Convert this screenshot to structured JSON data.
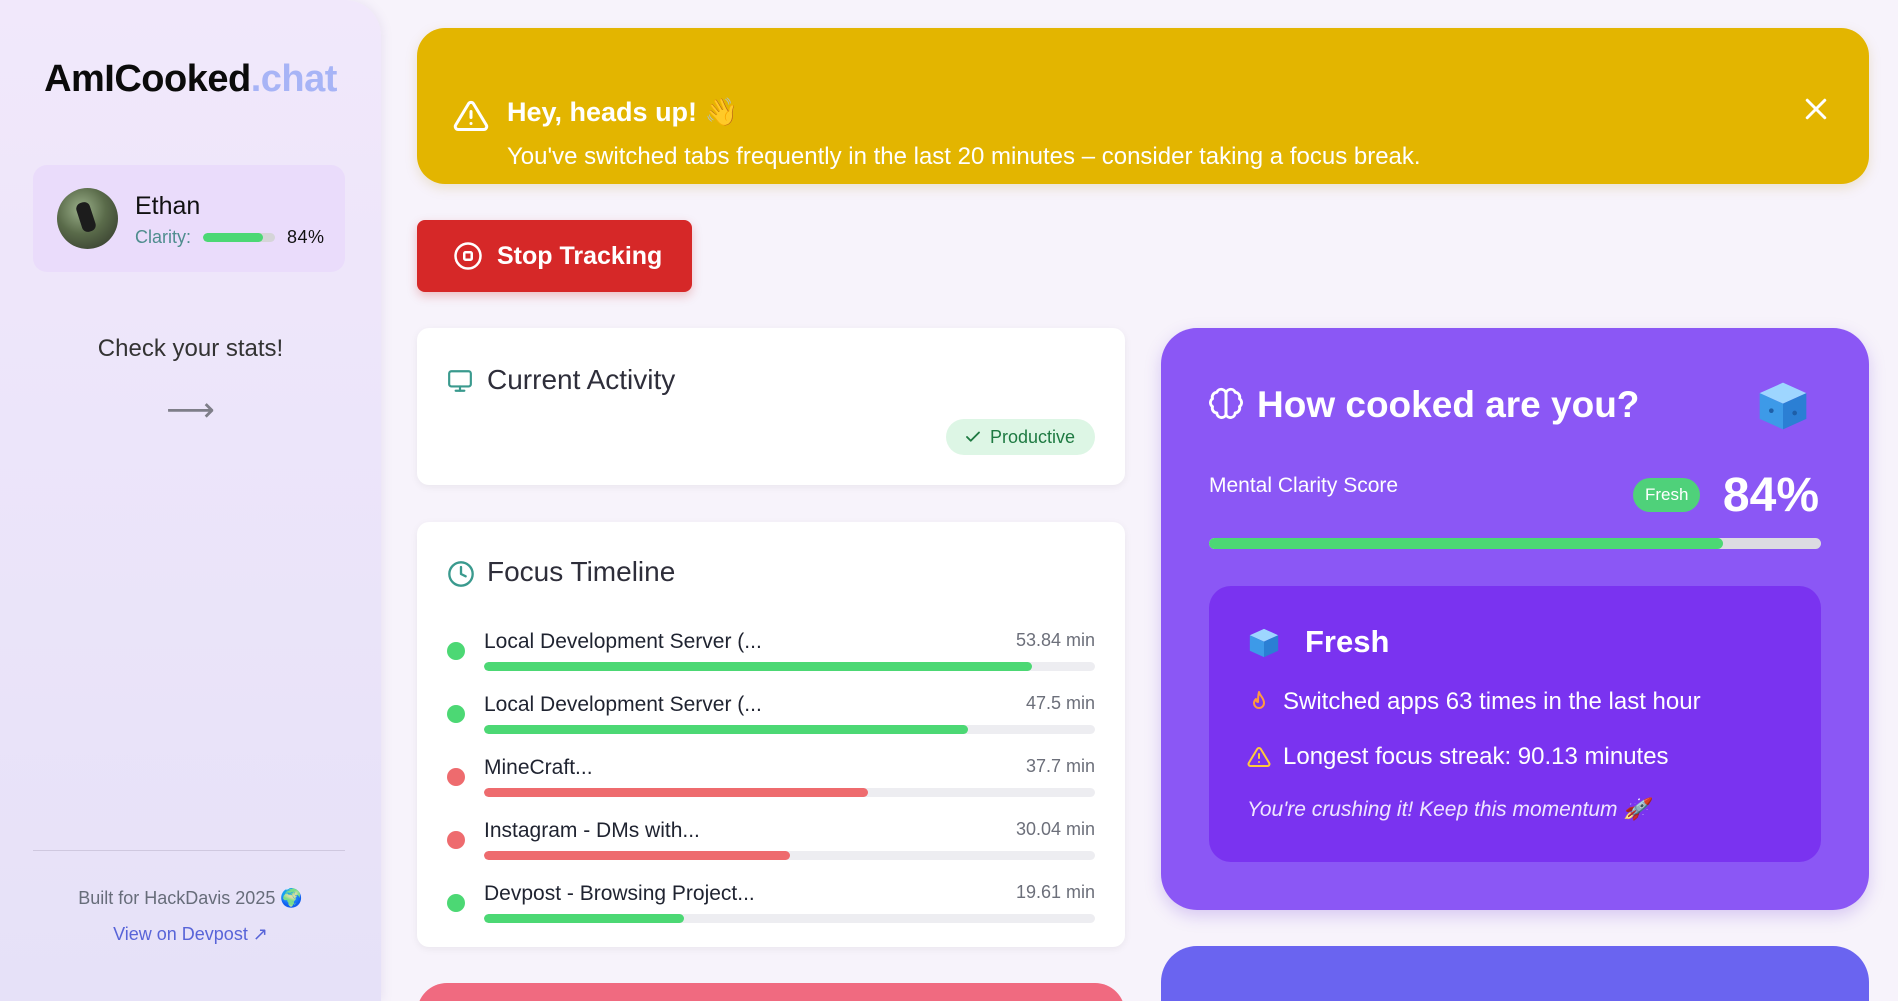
{
  "sidebar": {
    "logo_main": "AmICooked",
    "logo_accent": ".chat",
    "user": {
      "name": "Ethan",
      "clarity_label": "Clarity:",
      "clarity_value": "84%",
      "clarity_fraction": 0.84
    },
    "stats_prompt": "Check your stats!",
    "arrow": "⟶",
    "built_for": "Built for HackDavis 2025 🌍",
    "devpost_link": "View on Devpost ↗"
  },
  "alert": {
    "title": "Hey, heads up! 👋",
    "message": "You've switched tabs frequently in the last 20 minutes – consider taking a focus break.",
    "icon": "warning-triangle-icon",
    "close_icon": "close-icon"
  },
  "stop_tracking": {
    "label": "Stop Tracking",
    "icon": "stop-circle-icon"
  },
  "current_activity": {
    "title": "Current Activity",
    "icon": "monitor-icon",
    "badge": "Productive"
  },
  "focus_timeline": {
    "title": "Focus Timeline",
    "icon": "clock-icon",
    "items": [
      {
        "label": "Local Development Server (...",
        "time": "53.84 min",
        "fraction": 0.897,
        "color": "#4cd874"
      },
      {
        "label": "Local Development Server (...",
        "time": "47.5 min",
        "fraction": 0.792,
        "color": "#4cd874"
      },
      {
        "label": "MineCraft...",
        "time": "37.7 min",
        "fraction": 0.628,
        "color": "#ee6b6e"
      },
      {
        "label": "Instagram - DMs with...",
        "time": "30.04 min",
        "fraction": 0.5,
        "color": "#ee6b6e"
      },
      {
        "label": "Devpost - Browsing Project...",
        "time": "19.61 min",
        "fraction": 0.327,
        "color": "#4cd874"
      }
    ]
  },
  "cooked": {
    "title": "How cooked are you?",
    "score_label": "Mental Clarity Score",
    "status_pill": "Fresh",
    "score_value": "84%",
    "score_fraction": 0.84,
    "detail": {
      "title": "Fresh",
      "line1": "Switched apps 63 times in the last hour",
      "line2": "Longest focus streak: 90.13 minutes",
      "quote": "You're crushing it! Keep this momentum 🚀"
    }
  },
  "colors": {
    "accent_purple": "#8b57f5",
    "alert_yellow": "#e3b500",
    "stop_red": "#d62828",
    "productive_green": "#4cd874",
    "distracted_red": "#ee6b6e"
  }
}
